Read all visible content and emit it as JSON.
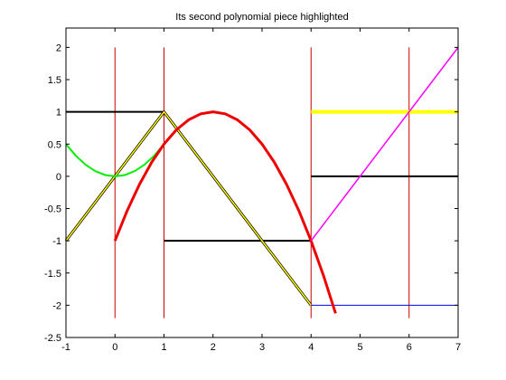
{
  "chart_data": {
    "type": "line",
    "title": "Its second polynomial piece highlighted",
    "xlabel": "",
    "ylabel": "",
    "xlim": [
      -1,
      7
    ],
    "ylim": [
      -2.5,
      2.3
    ],
    "x_ticks": [
      -1,
      0,
      1,
      2,
      3,
      4,
      5,
      6,
      7
    ],
    "x_tick_labels": [
      "-1",
      "0",
      "1",
      "2",
      "3",
      "4",
      "5",
      "6",
      "7"
    ],
    "y_ticks": [
      -2.5,
      -2,
      -1.5,
      -1,
      -0.5,
      0,
      0.5,
      1,
      1.5,
      2
    ],
    "y_tick_labels": [
      "-2.5",
      "-2",
      "-1.5",
      "-1",
      "-0.5",
      "0",
      "0.5",
      "1",
      "1.5",
      "2"
    ],
    "grid": false,
    "legend": "none",
    "series": [
      {
        "color": "#cc0000",
        "style": "vertical-lines",
        "width": 1,
        "x_positions": [
          0,
          1,
          4,
          6
        ],
        "y_range": [
          -2.2,
          2
        ]
      },
      {
        "color": "#000000",
        "style": "steps",
        "width": 2,
        "segments": [
          {
            "x": [
              -1,
              1
            ],
            "y": [
              1,
              1
            ]
          },
          {
            "x": [
              1,
              4
            ],
            "y": [
              -1,
              -1
            ]
          },
          {
            "x": [
              4,
              7
            ],
            "y": [
              0,
              0
            ]
          }
        ]
      },
      {
        "color": "#ffff00",
        "style": "steps",
        "width": 4,
        "segments": [
          {
            "x": [
              4,
              7
            ],
            "y": [
              1,
              1
            ]
          }
        ]
      },
      {
        "color": "#0000ff",
        "style": "steps",
        "width": 1,
        "segments": [
          {
            "x": [
              4,
              7
            ],
            "y": [
              -2,
              -2
            ]
          }
        ]
      },
      {
        "color": "#000000",
        "style": "polyline",
        "width": 3,
        "x": [
          -1,
          1,
          4
        ],
        "y": [
          -1,
          1,
          -2
        ]
      },
      {
        "color": "#ffff00",
        "style": "polyline",
        "width": 1.5,
        "x": [
          -1,
          1,
          4
        ],
        "y": [
          -1,
          1,
          -2
        ]
      },
      {
        "color": "#00ee00",
        "style": "curve",
        "width": 2,
        "x": [
          -1,
          -0.8,
          -0.6,
          -0.4,
          -0.2,
          0,
          0.2,
          0.4,
          0.6,
          0.8,
          1
        ],
        "y": [
          0.5,
          0.32,
          0.18,
          0.08,
          0.02,
          0,
          0.02,
          0.08,
          0.18,
          0.32,
          0.5
        ]
      },
      {
        "color": "#ee0000",
        "style": "curve",
        "width": 3,
        "x": [
          0,
          0.25,
          0.5,
          0.75,
          1,
          1.25,
          1.5,
          1.75,
          2,
          2.25,
          2.5,
          2.75,
          3,
          3.25,
          3.5,
          3.75,
          4,
          4.25,
          4.5
        ],
        "y": [
          -1,
          -0.531,
          -0.125,
          0.219,
          0.5,
          0.719,
          0.875,
          0.969,
          1,
          0.969,
          0.875,
          0.719,
          0.5,
          0.219,
          -0.125,
          -0.531,
          -1,
          -1.531,
          -2.125
        ]
      },
      {
        "color": "#ff00ff",
        "style": "polyline",
        "width": 1.5,
        "x": [
          4,
          7
        ],
        "y": [
          -1,
          2
        ]
      }
    ]
  }
}
